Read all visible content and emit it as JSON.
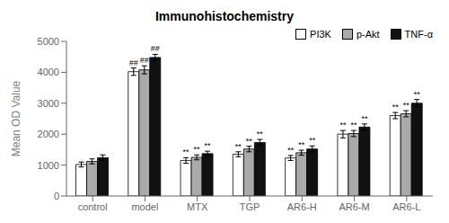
{
  "chart_data": {
    "type": "bar",
    "title": "Immunohistochemistry",
    "y_label": "Mean OD Value",
    "categories": [
      "control",
      "model",
      "MTX",
      "TGP",
      "AR6-H",
      "AR6-M",
      "AR6-L"
    ],
    "series": [
      {
        "name": "PI3K",
        "color": "#ffffff",
        "values": [
          1020,
          4020,
          1150,
          1350,
          1230,
          2000,
          2600
        ],
        "errors": [
          80,
          120,
          90,
          80,
          80,
          120,
          100
        ]
      },
      {
        "name": "p-Akt",
        "color": "#aaaaaa",
        "values": [
          1120,
          4080,
          1250,
          1520,
          1400,
          2020,
          2660
        ],
        "errors": [
          80,
          130,
          80,
          90,
          80,
          100,
          100
        ]
      },
      {
        "name": "TNF-α",
        "color": "#111111",
        "values": [
          1240,
          4480,
          1370,
          1730,
          1520,
          2230,
          3000
        ],
        "errors": [
          90,
          100,
          80,
          100,
          100,
          100,
          120
        ]
      }
    ],
    "annotations": [
      {
        "text": "##",
        "categories": [
          "model"
        ]
      },
      {
        "text": "**",
        "categories": [
          "MTX",
          "TGP",
          "AR6-H",
          "AR6-M",
          "AR6-L"
        ]
      }
    ],
    "ylim": [
      0,
      5000
    ],
    "yticks": [
      0,
      1000,
      2000,
      3000,
      4000,
      5000
    ],
    "grid": false,
    "legend": "upper right"
  }
}
